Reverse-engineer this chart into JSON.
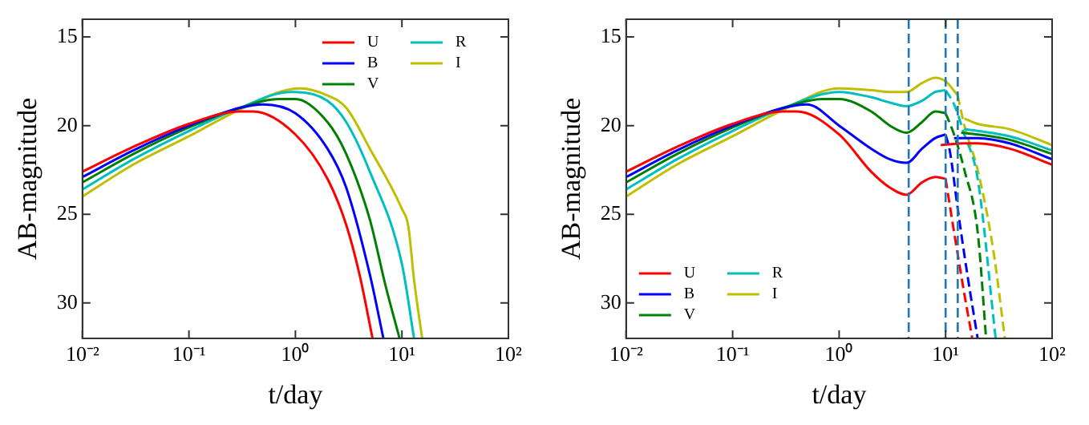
{
  "chart_data": [
    {
      "type": "line",
      "xlabel": "t/day",
      "ylabel": "AB-magnitude",
      "log": "x",
      "xlim": [
        0.01,
        100
      ],
      "ylim": [
        32,
        14
      ],
      "xticks": [
        {
          "value": 0.01,
          "label": "10⁻²"
        },
        {
          "value": 0.1,
          "label": "10⁻¹"
        },
        {
          "value": 1,
          "label": "10⁰"
        },
        {
          "value": 10,
          "label": "10¹"
        },
        {
          "value": 100,
          "label": "10²"
        }
      ],
      "yticks": [
        15,
        20,
        25,
        30
      ],
      "grid": false,
      "legend": "top right",
      "line_style": "solid",
      "series": [
        {
          "name": "U",
          "color": "#ff0000",
          "x": [
            0.01,
            0.03,
            0.1,
            0.3,
            0.4,
            1,
            2,
            3,
            4,
            5.3
          ],
          "values": [
            22.6,
            21.2,
            19.9,
            19.2,
            19.2,
            20.5,
            23,
            25.6,
            28.4,
            32
          ]
        },
        {
          "name": "B",
          "color": "#0000ff",
          "x": [
            0.01,
            0.03,
            0.1,
            0.3,
            0.5,
            1,
            2,
            3,
            5,
            6.7
          ],
          "values": [
            22.9,
            21.4,
            20,
            19,
            18.8,
            19.3,
            21.3,
            23.5,
            28.4,
            32
          ]
        },
        {
          "name": "V",
          "color": "#008000",
          "x": [
            0.01,
            0.03,
            0.1,
            0.3,
            0.7,
            1,
            2,
            3,
            5,
            7,
            9.5
          ],
          "values": [
            23.2,
            21.6,
            20.1,
            19,
            18.5,
            18.5,
            19.8,
            21.6,
            25.3,
            29,
            32
          ]
        },
        {
          "name": "R",
          "color": "#00bfbf",
          "x": [
            0.01,
            0.03,
            0.1,
            0.3,
            0.9,
            1,
            2,
            3,
            5,
            10,
            13
          ],
          "values": [
            23.6,
            21.9,
            20.3,
            19,
            18.1,
            18.1,
            18.6,
            19.8,
            22.6,
            27.8,
            32
          ]
        },
        {
          "name": "I",
          "color": "#bfbf00",
          "x": [
            0.01,
            0.03,
            0.1,
            0.3,
            1.1,
            2,
            3,
            5,
            10,
            11.5,
            13,
            15.5
          ],
          "values": [
            24,
            22.2,
            20.6,
            19.1,
            17.9,
            18.3,
            19,
            21.3,
            24.7,
            25.7,
            28.7,
            32
          ]
        }
      ]
    },
    {
      "type": "line",
      "xlabel": "t/day",
      "ylabel": "AB-magnitude",
      "log": "x",
      "xlim": [
        0.01,
        100
      ],
      "ylim": [
        32,
        14
      ],
      "xticks": [
        {
          "value": 0.01,
          "label": "10⁻²"
        },
        {
          "value": 0.1,
          "label": "10⁻¹"
        },
        {
          "value": 1,
          "label": "10⁰"
        },
        {
          "value": 10,
          "label": "10¹"
        },
        {
          "value": 100,
          "label": "10²"
        }
      ],
      "yticks": [
        15,
        20,
        25,
        30
      ],
      "grid": false,
      "legend": "bottom left",
      "line_style": "solid",
      "ref_lines": [
        {
          "axis": "x",
          "value": 4.5,
          "color": "#1f77b4",
          "line_style": "dashed"
        },
        {
          "axis": "x",
          "value": 10,
          "color": "#1f77b4",
          "line_style": "dashed"
        },
        {
          "axis": "x",
          "value": 13,
          "color": "#1f77b4",
          "line_style": "dashed"
        }
      ],
      "series": [
        {
          "name": "U",
          "color": "#ff0000",
          "x": [
            0.01,
            0.03,
            0.1,
            0.3,
            0.4,
            1,
            2,
            3,
            4.3,
            6,
            8,
            10
          ],
          "values": [
            22.6,
            21.2,
            19.9,
            19.2,
            19.2,
            20.5,
            22.6,
            23.5,
            23.9,
            23.2,
            22.9,
            23
          ]
        },
        {
          "color": "#ff0000",
          "line_style": "dashed",
          "x": [
            10,
            12,
            15,
            17.8
          ],
          "values": [
            23,
            26,
            29.5,
            32
          ]
        },
        {
          "color": "#ff0000",
          "x": [
            9,
            15,
            20,
            40,
            100
          ],
          "values": [
            21.1,
            21,
            21,
            21.3,
            22.2
          ]
        },
        {
          "name": "B",
          "color": "#0000ff",
          "x": [
            0.01,
            0.03,
            0.1,
            0.3,
            0.5,
            1,
            2,
            3,
            4.3,
            6,
            8,
            10
          ],
          "values": [
            22.9,
            21.4,
            20,
            19,
            18.8,
            20,
            21.3,
            21.9,
            22.1,
            21.3,
            20.7,
            20.5
          ]
        },
        {
          "color": "#0000ff",
          "line_style": "dashed",
          "x": [
            10,
            11,
            13,
            16,
            20
          ],
          "values": [
            20.5,
            21.5,
            24.7,
            28.4,
            32
          ]
        },
        {
          "color": "#0000ff",
          "x": [
            12,
            20,
            40,
            100
          ],
          "values": [
            20.7,
            20.7,
            21,
            21.9
          ]
        },
        {
          "name": "V",
          "color": "#008000",
          "x": [
            0.01,
            0.03,
            0.1,
            0.3,
            0.7,
            1,
            2,
            3,
            4.3,
            6,
            8,
            10
          ],
          "values": [
            23.2,
            21.6,
            20.1,
            19,
            18.5,
            18.5,
            19.2,
            20,
            20.4,
            19.8,
            19.2,
            19.3
          ]
        },
        {
          "color": "#008000",
          "line_style": "dashed",
          "x": [
            10,
            12,
            15,
            20,
            24
          ],
          "values": [
            19.3,
            20.5,
            22.5,
            26,
            32
          ]
        },
        {
          "color": "#008000",
          "x": [
            14,
            20,
            40,
            100
          ],
          "values": [
            20.4,
            20.5,
            20.8,
            21.6
          ]
        },
        {
          "name": "R",
          "color": "#00bfbf",
          "x": [
            0.01,
            0.03,
            0.1,
            0.3,
            1,
            2,
            3,
            4.3,
            6,
            8,
            10
          ],
          "values": [
            23.6,
            21.9,
            20.3,
            19,
            18.1,
            18.4,
            18.7,
            18.9,
            18.6,
            18.1,
            18
          ]
        },
        {
          "color": "#00bfbf",
          "line_style": "dashed",
          "x": [
            10,
            12,
            15,
            20,
            29.5
          ],
          "values": [
            18,
            18.8,
            20.5,
            23,
            32
          ]
        },
        {
          "color": "#00bfbf",
          "x": [
            15,
            20,
            40,
            100
          ],
          "values": [
            20.2,
            20.3,
            20.6,
            21.4
          ]
        },
        {
          "name": "I",
          "color": "#bfbf00",
          "x": [
            0.01,
            0.03,
            0.1,
            0.3,
            1,
            2,
            3,
            4.3,
            6,
            8,
            10,
            13
          ],
          "values": [
            24,
            22.2,
            20.6,
            19.1,
            17.9,
            18,
            18.1,
            18.1,
            17.6,
            17.3,
            17.5,
            18.3
          ]
        },
        {
          "color": "#bfbf00",
          "line_style": "dashed",
          "x": [
            13,
            15,
            20,
            28,
            36
          ],
          "values": [
            18.3,
            20,
            22.5,
            27,
            32
          ]
        },
        {
          "color": "#bfbf00",
          "x": [
            15,
            20,
            40,
            100
          ],
          "values": [
            19.6,
            19.9,
            20.2,
            21.1
          ]
        }
      ]
    }
  ]
}
